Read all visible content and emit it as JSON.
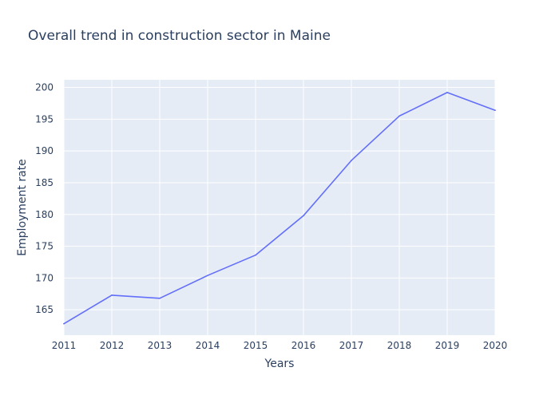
{
  "chart_data": {
    "type": "line",
    "title": "Overall trend in construction sector in Maine",
    "xlabel": "Years",
    "ylabel": "Employment rate",
    "x": [
      2011,
      2012,
      2013,
      2014,
      2015,
      2016,
      2017,
      2018,
      2019,
      2020
    ],
    "series": [
      {
        "values": [
          162.8,
          167.3,
          166.8,
          170.4,
          173.6,
          179.8,
          188.5,
          195.5,
          199.2,
          196.4
        ]
      }
    ],
    "xlim": [
      2011,
      2020
    ],
    "ylim": [
      161,
      201.2
    ],
    "x_ticks": [
      2011,
      2012,
      2013,
      2014,
      2015,
      2016,
      2017,
      2018,
      2019,
      2020
    ],
    "y_ticks": [
      165,
      170,
      175,
      180,
      185,
      190,
      195,
      200
    ],
    "grid": true,
    "colors": {
      "line": "#636efa",
      "plot_background": "#e5ecf6",
      "grid": "#ffffff",
      "text": "#2a3f5f"
    }
  }
}
